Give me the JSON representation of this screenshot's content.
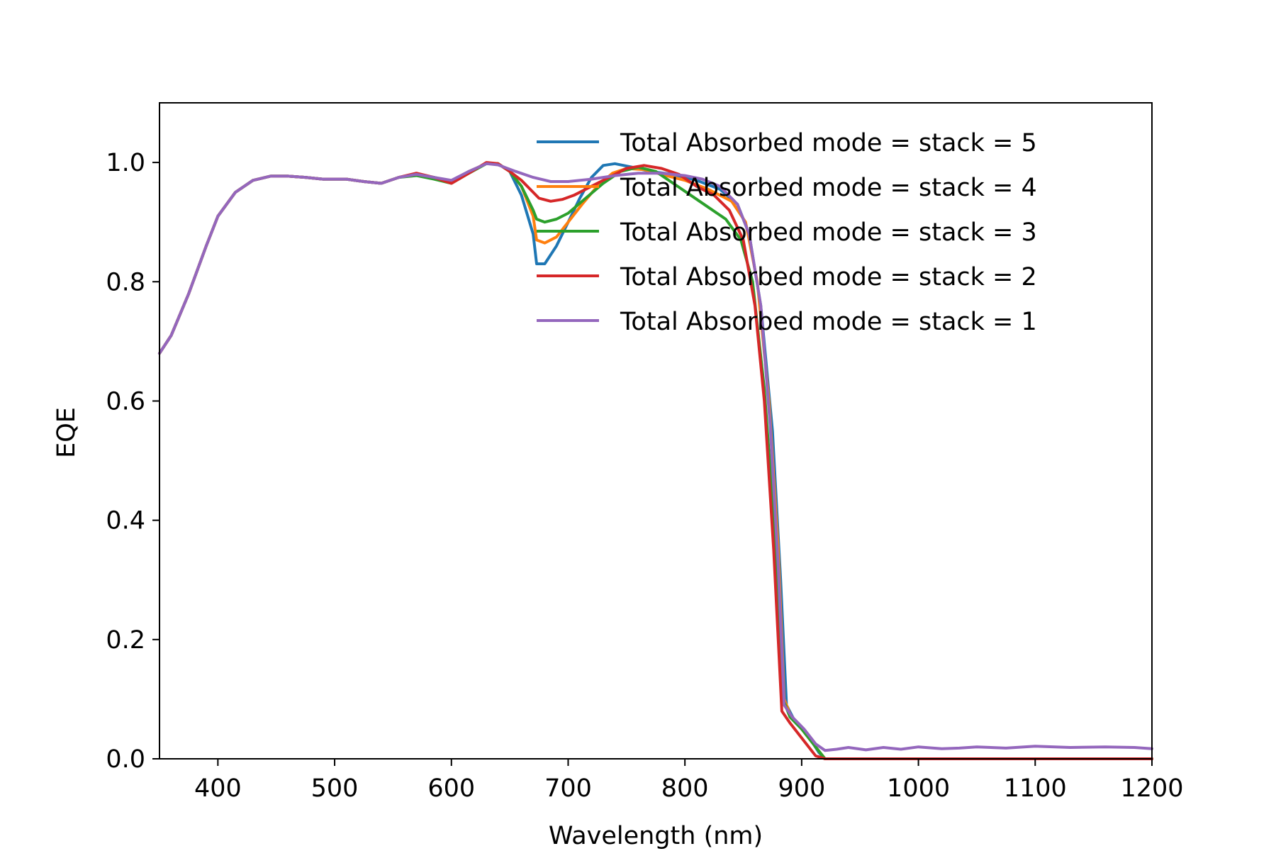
{
  "chart_data": {
    "type": "line",
    "xlabel": "Wavelength (nm)",
    "ylabel": "EQE",
    "xlim": [
      350,
      1200
    ],
    "ylim": [
      0,
      1.1
    ],
    "xticks": [
      400,
      500,
      600,
      700,
      800,
      900,
      1000,
      1100,
      1200
    ],
    "xtick_labels": [
      "400",
      "500",
      "600",
      "700",
      "800",
      "900",
      "1000",
      "1100",
      "1200"
    ],
    "yticks": [
      0,
      0.2,
      0.4,
      0.6,
      0.8,
      1.0
    ],
    "ytick_labels": [
      "0.0",
      "0.2",
      "0.4",
      "0.6",
      "0.8",
      "1.0"
    ],
    "grid": false,
    "legend_position": "top-right",
    "series": [
      {
        "name": "Total Absorbed mode = stack = 5",
        "color": "#1f77b4",
        "points": [
          [
            350,
            0.68
          ],
          [
            360,
            0.71
          ],
          [
            375,
            0.78
          ],
          [
            390,
            0.86
          ],
          [
            400,
            0.91
          ],
          [
            415,
            0.95
          ],
          [
            430,
            0.97
          ],
          [
            445,
            0.977
          ],
          [
            460,
            0.977
          ],
          [
            475,
            0.975
          ],
          [
            490,
            0.972
          ],
          [
            510,
            0.972
          ],
          [
            525,
            0.968
          ],
          [
            540,
            0.965
          ],
          [
            555,
            0.975
          ],
          [
            570,
            0.98
          ],
          [
            585,
            0.975
          ],
          [
            600,
            0.968
          ],
          [
            615,
            0.985
          ],
          [
            630,
            0.998
          ],
          [
            640,
            0.998
          ],
          [
            650,
            0.985
          ],
          [
            660,
            0.945
          ],
          [
            670,
            0.88
          ],
          [
            673,
            0.83
          ],
          [
            680,
            0.83
          ],
          [
            690,
            0.86
          ],
          [
            700,
            0.9
          ],
          [
            710,
            0.94
          ],
          [
            720,
            0.975
          ],
          [
            730,
            0.995
          ],
          [
            740,
            0.998
          ],
          [
            755,
            0.992
          ],
          [
            770,
            0.985
          ],
          [
            790,
            0.98
          ],
          [
            810,
            0.97
          ],
          [
            830,
            0.955
          ],
          [
            845,
            0.93
          ],
          [
            855,
            0.88
          ],
          [
            865,
            0.76
          ],
          [
            875,
            0.55
          ],
          [
            882,
            0.3
          ],
          [
            887,
            0.09
          ],
          [
            895,
            0.06
          ],
          [
            905,
            0.04
          ],
          [
            915,
            0.01
          ],
          [
            920,
            0.0
          ],
          [
            1000,
            0.0
          ],
          [
            1100,
            0.0
          ],
          [
            1200,
            0.0
          ]
        ]
      },
      {
        "name": "Total Absorbed mode = stack = 4",
        "color": "#ff7f0e",
        "points": [
          [
            350,
            0.68
          ],
          [
            360,
            0.71
          ],
          [
            375,
            0.78
          ],
          [
            390,
            0.86
          ],
          [
            400,
            0.91
          ],
          [
            415,
            0.95
          ],
          [
            430,
            0.97
          ],
          [
            445,
            0.977
          ],
          [
            460,
            0.977
          ],
          [
            475,
            0.975
          ],
          [
            490,
            0.972
          ],
          [
            510,
            0.972
          ],
          [
            525,
            0.968
          ],
          [
            540,
            0.965
          ],
          [
            555,
            0.975
          ],
          [
            570,
            0.98
          ],
          [
            585,
            0.975
          ],
          [
            600,
            0.968
          ],
          [
            615,
            0.985
          ],
          [
            630,
            0.998
          ],
          [
            640,
            0.998
          ],
          [
            650,
            0.985
          ],
          [
            660,
            0.96
          ],
          [
            670,
            0.91
          ],
          [
            673,
            0.87
          ],
          [
            680,
            0.865
          ],
          [
            690,
            0.875
          ],
          [
            700,
            0.9
          ],
          [
            712,
            0.93
          ],
          [
            725,
            0.96
          ],
          [
            738,
            0.982
          ],
          [
            750,
            0.99
          ],
          [
            765,
            0.988
          ],
          [
            780,
            0.98
          ],
          [
            800,
            0.97
          ],
          [
            820,
            0.955
          ],
          [
            840,
            0.935
          ],
          [
            852,
            0.9
          ],
          [
            862,
            0.8
          ],
          [
            872,
            0.6
          ],
          [
            880,
            0.35
          ],
          [
            885,
            0.1
          ],
          [
            890,
            0.075
          ],
          [
            900,
            0.05
          ],
          [
            912,
            0.02
          ],
          [
            920,
            0.0
          ],
          [
            1000,
            0.0
          ],
          [
            1100,
            0.0
          ],
          [
            1200,
            0.0
          ]
        ]
      },
      {
        "name": "Total Absorbed mode = stack = 3",
        "color": "#2ca02c",
        "points": [
          [
            350,
            0.68
          ],
          [
            360,
            0.71
          ],
          [
            375,
            0.78
          ],
          [
            390,
            0.86
          ],
          [
            400,
            0.91
          ],
          [
            415,
            0.95
          ],
          [
            430,
            0.97
          ],
          [
            445,
            0.977
          ],
          [
            460,
            0.977
          ],
          [
            475,
            0.975
          ],
          [
            490,
            0.972
          ],
          [
            510,
            0.972
          ],
          [
            525,
            0.968
          ],
          [
            540,
            0.965
          ],
          [
            555,
            0.975
          ],
          [
            570,
            0.978
          ],
          [
            585,
            0.972
          ],
          [
            600,
            0.965
          ],
          [
            615,
            0.982
          ],
          [
            630,
            0.998
          ],
          [
            640,
            0.998
          ],
          [
            650,
            0.985
          ],
          [
            660,
            0.96
          ],
          [
            670,
            0.92
          ],
          [
            673,
            0.905
          ],
          [
            680,
            0.9
          ],
          [
            690,
            0.905
          ],
          [
            700,
            0.915
          ],
          [
            715,
            0.94
          ],
          [
            730,
            0.965
          ],
          [
            745,
            0.985
          ],
          [
            760,
            0.992
          ],
          [
            775,
            0.985
          ],
          [
            790,
            0.965
          ],
          [
            805,
            0.945
          ],
          [
            820,
            0.925
          ],
          [
            835,
            0.905
          ],
          [
            848,
            0.87
          ],
          [
            858,
            0.8
          ],
          [
            868,
            0.62
          ],
          [
            877,
            0.38
          ],
          [
            884,
            0.1
          ],
          [
            890,
            0.07
          ],
          [
            900,
            0.05
          ],
          [
            912,
            0.02
          ],
          [
            920,
            0.0
          ],
          [
            1000,
            0.0
          ],
          [
            1100,
            0.0
          ],
          [
            1200,
            0.0
          ]
        ]
      },
      {
        "name": "Total Absorbed mode = stack = 2",
        "color": "#d62728",
        "points": [
          [
            350,
            0.68
          ],
          [
            360,
            0.71
          ],
          [
            375,
            0.78
          ],
          [
            390,
            0.86
          ],
          [
            400,
            0.91
          ],
          [
            415,
            0.95
          ],
          [
            430,
            0.97
          ],
          [
            445,
            0.977
          ],
          [
            460,
            0.977
          ],
          [
            475,
            0.975
          ],
          [
            490,
            0.972
          ],
          [
            510,
            0.972
          ],
          [
            525,
            0.968
          ],
          [
            540,
            0.965
          ],
          [
            555,
            0.975
          ],
          [
            570,
            0.982
          ],
          [
            585,
            0.975
          ],
          [
            600,
            0.965
          ],
          [
            615,
            0.982
          ],
          [
            630,
            1.0
          ],
          [
            640,
            0.998
          ],
          [
            650,
            0.985
          ],
          [
            660,
            0.97
          ],
          [
            670,
            0.95
          ],
          [
            675,
            0.94
          ],
          [
            685,
            0.935
          ],
          [
            695,
            0.938
          ],
          [
            705,
            0.945
          ],
          [
            720,
            0.96
          ],
          [
            735,
            0.975
          ],
          [
            750,
            0.99
          ],
          [
            765,
            0.995
          ],
          [
            780,
            0.99
          ],
          [
            795,
            0.98
          ],
          [
            810,
            0.96
          ],
          [
            825,
            0.945
          ],
          [
            838,
            0.92
          ],
          [
            850,
            0.87
          ],
          [
            860,
            0.76
          ],
          [
            868,
            0.6
          ],
          [
            876,
            0.35
          ],
          [
            883,
            0.08
          ],
          [
            890,
            0.06
          ],
          [
            900,
            0.035
          ],
          [
            912,
            0.005
          ],
          [
            920,
            0.0
          ],
          [
            1000,
            0.0
          ],
          [
            1100,
            0.0
          ],
          [
            1200,
            0.0
          ]
        ]
      },
      {
        "name": "Total Absorbed mode = stack = 1",
        "color": "#9467bd",
        "points": [
          [
            350,
            0.68
          ],
          [
            360,
            0.71
          ],
          [
            375,
            0.78
          ],
          [
            390,
            0.86
          ],
          [
            400,
            0.91
          ],
          [
            415,
            0.95
          ],
          [
            430,
            0.97
          ],
          [
            445,
            0.977
          ],
          [
            460,
            0.977
          ],
          [
            475,
            0.975
          ],
          [
            490,
            0.972
          ],
          [
            510,
            0.972
          ],
          [
            525,
            0.968
          ],
          [
            540,
            0.965
          ],
          [
            555,
            0.975
          ],
          [
            570,
            0.98
          ],
          [
            585,
            0.975
          ],
          [
            600,
            0.97
          ],
          [
            615,
            0.985
          ],
          [
            630,
            0.998
          ],
          [
            640,
            0.996
          ],
          [
            655,
            0.985
          ],
          [
            670,
            0.975
          ],
          [
            685,
            0.968
          ],
          [
            700,
            0.968
          ],
          [
            720,
            0.972
          ],
          [
            740,
            0.978
          ],
          [
            760,
            0.982
          ],
          [
            780,
            0.982
          ],
          [
            800,
            0.978
          ],
          [
            815,
            0.972
          ],
          [
            830,
            0.96
          ],
          [
            845,
            0.93
          ],
          [
            855,
            0.88
          ],
          [
            865,
            0.76
          ],
          [
            873,
            0.56
          ],
          [
            880,
            0.32
          ],
          [
            885,
            0.09
          ],
          [
            892,
            0.07
          ],
          [
            902,
            0.05
          ],
          [
            912,
            0.025
          ],
          [
            920,
            0.014
          ],
          [
            930,
            0.016
          ],
          [
            940,
            0.019
          ],
          [
            955,
            0.015
          ],
          [
            970,
            0.019
          ],
          [
            985,
            0.016
          ],
          [
            1000,
            0.02
          ],
          [
            1020,
            0.017
          ],
          [
            1035,
            0.018
          ],
          [
            1050,
            0.02
          ],
          [
            1075,
            0.018
          ],
          [
            1100,
            0.021
          ],
          [
            1130,
            0.019
          ],
          [
            1160,
            0.02
          ],
          [
            1185,
            0.019
          ],
          [
            1200,
            0.017
          ]
        ]
      }
    ]
  }
}
